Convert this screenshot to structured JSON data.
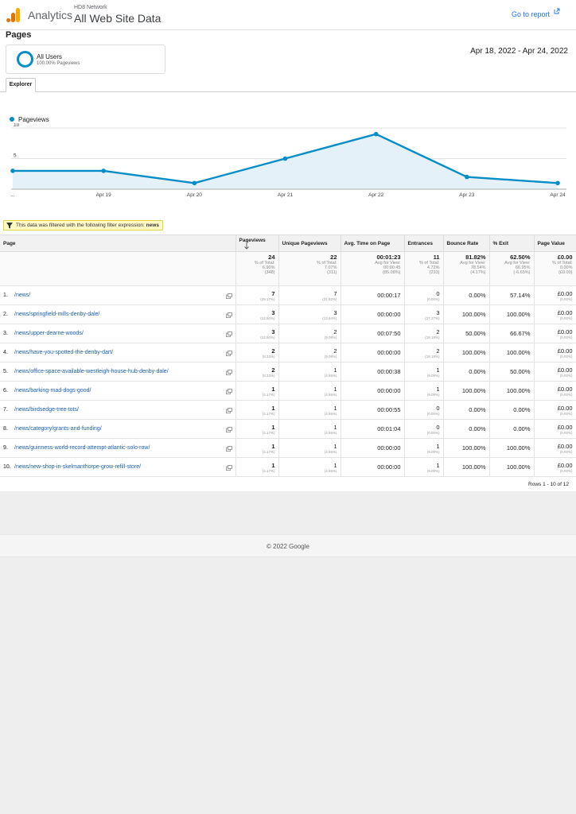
{
  "header": {
    "brand": "Analytics",
    "property": "HD8 Network",
    "view": "All Web Site Data",
    "goto_report": "Go to report"
  },
  "page_title": "Pages",
  "segment": {
    "name": "All Users",
    "sub": "100.00% Pageviews"
  },
  "date_range": "Apr 18, 2022 - Apr 24, 2022",
  "tab": "Explorer",
  "chart_data": {
    "type": "area",
    "series": [
      {
        "name": "Pageviews",
        "values": [
          3,
          3,
          1,
          5,
          9,
          2,
          1
        ]
      }
    ],
    "categories": [
      "...",
      "Apr 19",
      "Apr 20",
      "Apr 21",
      "Apr 22",
      "Apr 23",
      "Apr 24"
    ],
    "yticks": [
      "10",
      "5"
    ],
    "ylim": [
      0,
      10
    ],
    "color": "#058dc7"
  },
  "filter": {
    "text": "This data was filtered with the following filter expression:",
    "term": "news"
  },
  "table": {
    "columns": [
      "Page",
      "Pageviews",
      "Unique Pageviews",
      "Avg. Time on Page",
      "Entrances",
      "Bounce Rate",
      "% Exit",
      "Page Value"
    ],
    "totals": [
      {
        "main": "24",
        "l1": "% of Total:",
        "l2": "6.90%",
        "l3": "(348)"
      },
      {
        "main": "22",
        "l1": "% of Total:",
        "l2": "7.07%",
        "l3": "(311)"
      },
      {
        "main": "00:01:23",
        "l1": "Avg for View:",
        "l2": "00:00:45",
        "l3": "(85.08%)"
      },
      {
        "main": "11",
        "l1": "% of Total:",
        "l2": "4.72%",
        "l3": "(233)"
      },
      {
        "main": "81.82%",
        "l1": "Avg for View:",
        "l2": "78.54%",
        "l3": "(4.17%)"
      },
      {
        "main": "62.50%",
        "l1": "Avg for View:",
        "l2": "66.95%",
        "l3": "(-6.65%)"
      },
      {
        "main": "£0.00",
        "l1": "% of Total:",
        "l2": "0.00%",
        "l3": "(£0.00)"
      }
    ],
    "rows": [
      {
        "rank": "1.",
        "page": "/news/",
        "pv": "7",
        "pvp": "(29.17%)",
        "upv": "7",
        "upvp": "(31.82%)",
        "time": "00:00:17",
        "ent": "0",
        "entp": "(0.00%)",
        "bounce": "0.00%",
        "exit": "57.14%",
        "value": "£0.00",
        "valuep": "(0.00%)"
      },
      {
        "rank": "2.",
        "page": "/news/springfield-mills-denby-dale/",
        "pv": "3",
        "pvp": "(12.50%)",
        "upv": "3",
        "upvp": "(13.64%)",
        "time": "00:00:00",
        "ent": "3",
        "entp": "(27.27%)",
        "bounce": "100.00%",
        "exit": "100.00%",
        "value": "£0.00",
        "valuep": "(0.00%)"
      },
      {
        "rank": "3.",
        "page": "/news/upper-dearne-woods/",
        "pv": "3",
        "pvp": "(12.50%)",
        "upv": "2",
        "upvp": "(9.09%)",
        "time": "00:07:50",
        "ent": "2",
        "entp": "(18.18%)",
        "bounce": "50.00%",
        "exit": "66.67%",
        "value": "£0.00",
        "valuep": "(0.00%)"
      },
      {
        "rank": "4.",
        "page": "/news/have-you-spotted-the-denby-dart/",
        "pv": "2",
        "pvp": "(8.33%)",
        "upv": "2",
        "upvp": "(9.09%)",
        "time": "00:00:00",
        "ent": "2",
        "entp": "(18.18%)",
        "bounce": "100.00%",
        "exit": "100.00%",
        "value": "£0.00",
        "valuep": "(0.00%)"
      },
      {
        "rank": "5.",
        "page": "/news/office-space-available-westleigh-house-hub-denby-dale/",
        "pv": "2",
        "pvp": "(8.33%)",
        "upv": "1",
        "upvp": "(4.55%)",
        "time": "00:00:38",
        "ent": "1",
        "entp": "(9.09%)",
        "bounce": "0.00%",
        "exit": "50.00%",
        "value": "£0.00",
        "valuep": "(0.00%)"
      },
      {
        "rank": "6.",
        "page": "/news/barking-mad-dogs-good/",
        "pv": "1",
        "pvp": "(4.17%)",
        "upv": "1",
        "upvp": "(4.55%)",
        "time": "00:00:00",
        "ent": "1",
        "entp": "(9.09%)",
        "bounce": "100.00%",
        "exit": "100.00%",
        "value": "£0.00",
        "valuep": "(0.00%)"
      },
      {
        "rank": "7.",
        "page": "/news/birdsedge-tree-tots/",
        "pv": "1",
        "pvp": "(4.17%)",
        "upv": "1",
        "upvp": "(4.55%)",
        "time": "00:00:55",
        "ent": "0",
        "entp": "(0.00%)",
        "bounce": "0.00%",
        "exit": "0.00%",
        "value": "£0.00",
        "valuep": "(0.00%)"
      },
      {
        "rank": "8.",
        "page": "/news/category/grants-and-funding/",
        "pv": "1",
        "pvp": "(4.17%)",
        "upv": "1",
        "upvp": "(4.55%)",
        "time": "00:01:04",
        "ent": "0",
        "entp": "(0.00%)",
        "bounce": "0.00%",
        "exit": "0.00%",
        "value": "£0.00",
        "valuep": "(0.00%)"
      },
      {
        "rank": "9.",
        "page": "/news/guinness-world-record-attempt-atlantic-solo-row/",
        "pv": "1",
        "pvp": "(4.17%)",
        "upv": "1",
        "upvp": "(4.55%)",
        "time": "00:00:00",
        "ent": "1",
        "entp": "(9.09%)",
        "bounce": "100.00%",
        "exit": "100.00%",
        "value": "£0.00",
        "valuep": "(0.00%)"
      },
      {
        "rank": "10.",
        "page": "/news/new-shop-in-skelmanthorpe-grow-refill-store/",
        "pv": "1",
        "pvp": "(4.17%)",
        "upv": "1",
        "upvp": "(4.55%)",
        "time": "00:00:00",
        "ent": "1",
        "entp": "(9.09%)",
        "bounce": "100.00%",
        "exit": "100.00%",
        "value": "£0.00",
        "valuep": "(0.00%)"
      }
    ],
    "pager": "Rows 1 - 10 of 12"
  },
  "footer": "© 2022 Google"
}
